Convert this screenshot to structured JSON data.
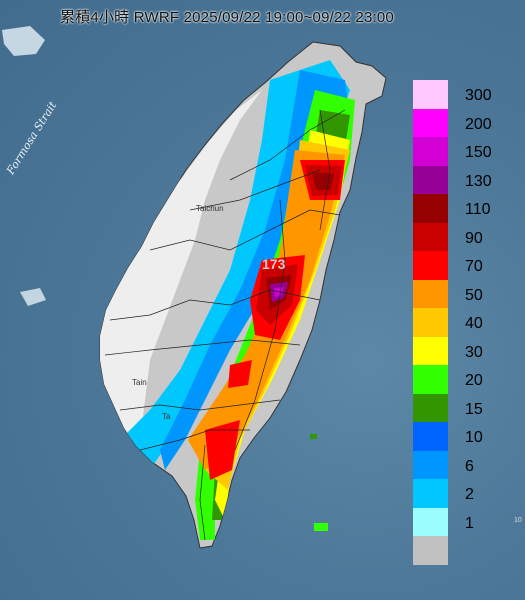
{
  "title": "累積4小時 RWRF 2025/09/22 19:00~09/22 23:00",
  "strait_label": "Formosa Strait",
  "cities": [
    "Taichun",
    "Tain",
    "Ta"
  ],
  "peak_label": "173",
  "edge_text": "10",
  "legend": {
    "levels": [
      {
        "label": "300",
        "color": "#ffc8ff"
      },
      {
        "label": "200",
        "color": "#ff00ff"
      },
      {
        "label": "150",
        "color": "#d200d2"
      },
      {
        "label": "130",
        "color": "#960096"
      },
      {
        "label": "110",
        "color": "#960000"
      },
      {
        "label": "90",
        "color": "#c80000"
      },
      {
        "label": "70",
        "color": "#ff0000"
      },
      {
        "label": "50",
        "color": "#ff9600"
      },
      {
        "label": "40",
        "color": "#ffc800"
      },
      {
        "label": "30",
        "color": "#ffff00"
      },
      {
        "label": "20",
        "color": "#32ff00"
      },
      {
        "label": "15",
        "color": "#329600"
      },
      {
        "label": "10",
        "color": "#0064ff"
      },
      {
        "label": "6",
        "color": "#0096ff"
      },
      {
        "label": "2",
        "color": "#00c8ff"
      },
      {
        "label": "1",
        "color": "#9bffff"
      },
      {
        "label": "",
        "color": "#c0c0c0"
      }
    ]
  }
}
